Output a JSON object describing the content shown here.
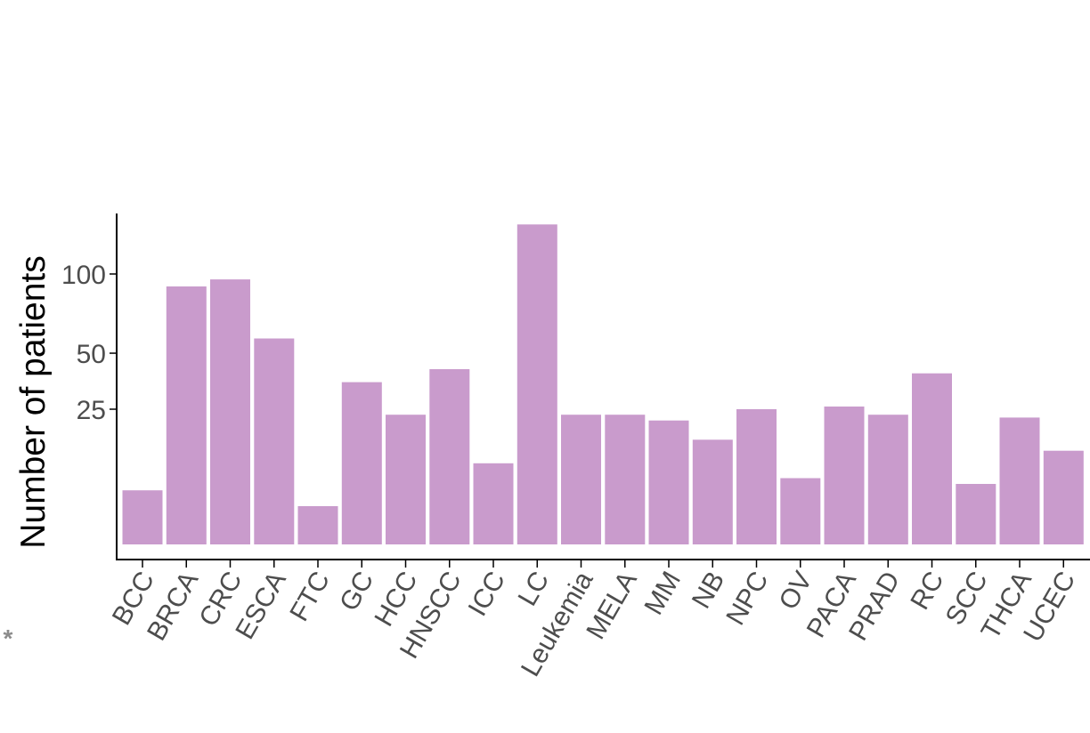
{
  "chart_data": {
    "type": "bar",
    "ylabel": "Number of patients",
    "xlabel": "",
    "y_scale": "sqrt",
    "yticks": [
      25,
      50,
      100
    ],
    "ylim": [
      0,
      140
    ],
    "grid": false,
    "categories": [
      "BCC",
      "BRCA",
      "CRC",
      "ESCA",
      "FTC",
      "GC",
      "HCC",
      "HNSCC",
      "ICC",
      "LC",
      "Leukemia",
      "MELA",
      "MM",
      "NB",
      "NPC",
      "OV",
      "PACA",
      "PRAD",
      "RC",
      "SCC",
      "THCA",
      "UCEC"
    ],
    "values": [
      4,
      91,
      96,
      58,
      2,
      36,
      23,
      42,
      9,
      140,
      23,
      23,
      21,
      15,
      25,
      6,
      26,
      23,
      40,
      5,
      22,
      12
    ],
    "bar_color": "#c99bcc",
    "footnote_mark": "*"
  }
}
